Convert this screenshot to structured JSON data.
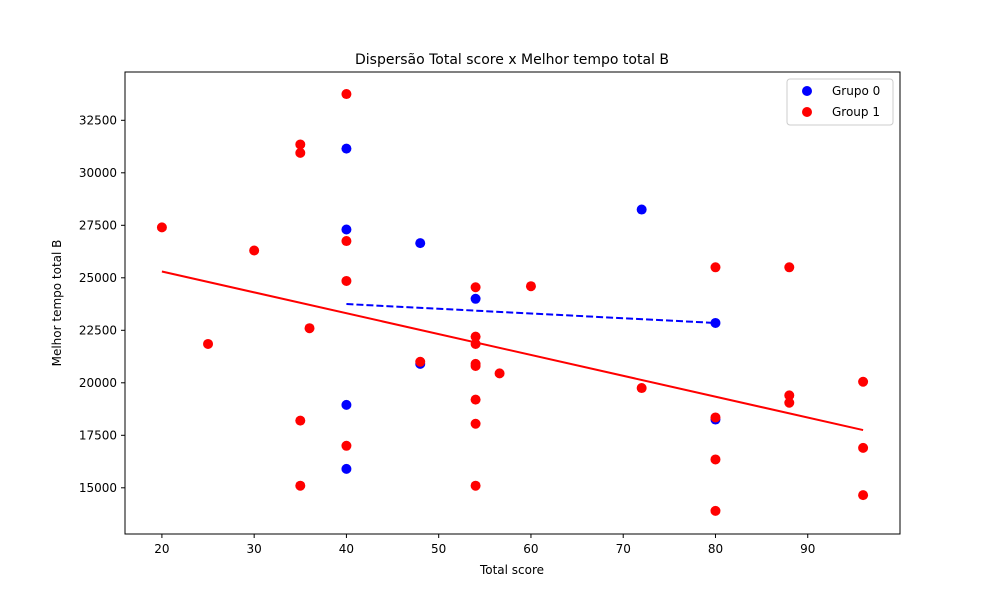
{
  "chart_data": {
    "type": "scatter",
    "title": "Dispersão Total score x Melhor tempo total B",
    "xlabel": "Total score",
    "ylabel": "Melhor tempo total B",
    "xlim": [
      16,
      100
    ],
    "ylim": [
      12800,
      34800
    ],
    "xticks": [
      20,
      30,
      40,
      50,
      60,
      70,
      80,
      90
    ],
    "yticks": [
      15000,
      17500,
      20000,
      22500,
      25000,
      27500,
      30000,
      32500
    ],
    "grid": false,
    "legend_position": "top-right",
    "series": [
      {
        "name": "Grupo 0",
        "color": "#0000ff",
        "points": [
          [
            40,
            31150
          ],
          [
            40,
            27300
          ],
          [
            40,
            18950
          ],
          [
            40,
            15900
          ],
          [
            48,
            26650
          ],
          [
            48,
            20900
          ],
          [
            54,
            24000
          ],
          [
            72,
            28250
          ],
          [
            80,
            22850
          ],
          [
            80,
            18250
          ]
        ]
      },
      {
        "name": "Group 1",
        "color": "#ff0000",
        "points": [
          [
            20,
            27400
          ],
          [
            25,
            21850
          ],
          [
            30,
            26300
          ],
          [
            35,
            31350
          ],
          [
            35,
            30950
          ],
          [
            35,
            18200
          ],
          [
            35,
            15100
          ],
          [
            36,
            22600
          ],
          [
            40,
            33750
          ],
          [
            40,
            26750
          ],
          [
            40,
            24850
          ],
          [
            40,
            17000
          ],
          [
            48,
            21000
          ],
          [
            54,
            24550
          ],
          [
            54,
            22200
          ],
          [
            54,
            21850
          ],
          [
            54,
            20900
          ],
          [
            54,
            20800
          ],
          [
            54,
            19200
          ],
          [
            54,
            18050
          ],
          [
            54,
            15100
          ],
          [
            56.6,
            20450
          ],
          [
            60,
            24600
          ],
          [
            72,
            19750
          ],
          [
            80,
            25500
          ],
          [
            80,
            18350
          ],
          [
            80,
            16350
          ],
          [
            80,
            13900
          ],
          [
            88,
            25500
          ],
          [
            88,
            19400
          ],
          [
            88,
            19050
          ],
          [
            96,
            20050
          ],
          [
            96,
            16900
          ],
          [
            96,
            14650
          ]
        ]
      }
    ],
    "trendlines": [
      {
        "series": "Grupo 0",
        "color": "#0000ff",
        "style": "dashed",
        "x": [
          40,
          80
        ],
        "y": [
          23750,
          22850
        ]
      },
      {
        "series": "Group 1",
        "color": "#ff0000",
        "style": "solid",
        "x": [
          20,
          96
        ],
        "y": [
          25300,
          17750
        ]
      }
    ]
  }
}
